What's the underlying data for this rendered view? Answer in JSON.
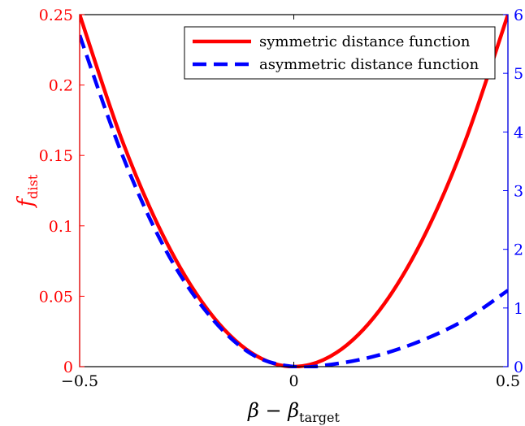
{
  "colors": {
    "left_axis": "#ff0000",
    "right_axis": "#0000ff",
    "frame": "#000000",
    "background": "#ffffff"
  },
  "chart_data": {
    "type": "line",
    "xlabel": "β − β_target",
    "xlabel_parts": {
      "main": "β − β",
      "sub": "target"
    },
    "ylabel_left": "f_dist",
    "ylabel_left_parts": {
      "main": "f",
      "sub": "dist"
    },
    "ylabel_right": "",
    "xlim": [
      -0.5,
      0.5
    ],
    "ylim_left": [
      0,
      0.25
    ],
    "ylim_right": [
      0,
      6
    ],
    "x_ticks": [
      "−0.5",
      "0",
      "0.5"
    ],
    "y_ticks_left": [
      "0",
      "0.05",
      "0.1",
      "0.15",
      "0.2",
      "0.25"
    ],
    "y_ticks_right": [
      "0",
      "1",
      "2",
      "3",
      "4",
      "5",
      "6"
    ],
    "grid": false,
    "legend": {
      "position": "top-right"
    },
    "series": [
      {
        "name": "symmetric distance function",
        "axis": "left",
        "color": "#ff0000",
        "style": "solid",
        "x": [
          -0.5,
          -0.4,
          -0.3,
          -0.2,
          -0.1,
          0,
          0.1,
          0.2,
          0.3,
          0.4,
          0.5
        ],
        "y": [
          0.25,
          0.16,
          0.09,
          0.04,
          0.01,
          0,
          0.01,
          0.04,
          0.09,
          0.16,
          0.25
        ]
      },
      {
        "name": "asymmetric distance function",
        "axis": "right",
        "color": "#0000ff",
        "style": "dashed",
        "x": [
          -0.5,
          -0.4,
          -0.3,
          -0.2,
          -0.1,
          0,
          0.1,
          0.2,
          0.3,
          0.4,
          0.5
        ],
        "y": [
          5.65,
          3.6,
          2.0,
          0.9,
          0.22,
          0,
          0.05,
          0.2,
          0.45,
          0.8,
          1.3
        ]
      }
    ]
  }
}
